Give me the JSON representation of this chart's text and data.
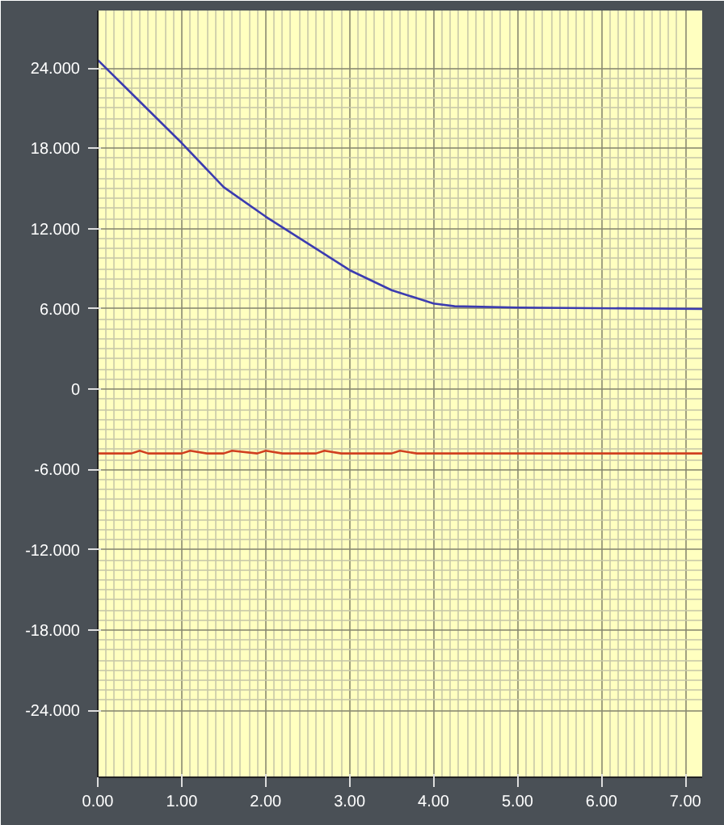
{
  "chart_data": {
    "type": "line",
    "xlim": [
      0,
      7.2
    ],
    "ylim": [
      -29,
      28.3
    ],
    "xticks": [
      {
        "value": 0,
        "label": "0.00"
      },
      {
        "value": 1,
        "label": "1.00"
      },
      {
        "value": 2,
        "label": "2.00"
      },
      {
        "value": 3,
        "label": "3.00"
      },
      {
        "value": 4,
        "label": "4.00"
      },
      {
        "value": 5,
        "label": "5.00"
      },
      {
        "value": 6,
        "label": "6.00"
      },
      {
        "value": 7,
        "label": "7.00"
      }
    ],
    "yticks": [
      {
        "value": -24,
        "label": "-24.000"
      },
      {
        "value": -18,
        "label": "-18.000"
      },
      {
        "value": -12,
        "label": "-12.000"
      },
      {
        "value": -6,
        "label": "-6.000"
      },
      0,
      {
        "value": 6,
        "label": "6.000"
      },
      {
        "value": 12,
        "label": "12.000"
      },
      {
        "value": 18,
        "label": "18.000"
      },
      {
        "value": 24,
        "label": "24.000"
      }
    ],
    "grid": true,
    "line_style": "solid",
    "series": [
      {
        "color": "#3c3cb0",
        "x": [
          0,
          0.5,
          1.0,
          1.5,
          2.0,
          2.5,
          3.0,
          3.5,
          4.0,
          4.25,
          5.0,
          7.2
        ],
        "values": [
          24.6,
          21.5,
          18.4,
          15.1,
          12.9,
          10.9,
          8.9,
          7.4,
          6.4,
          6.2,
          6.1,
          6.0
        ]
      },
      {
        "color": "#d04020",
        "x": [
          0,
          0.4,
          0.5,
          0.6,
          1.0,
          1.1,
          1.3,
          1.5,
          1.6,
          1.9,
          2.0,
          2.2,
          2.6,
          2.7,
          2.9,
          3.5,
          3.6,
          3.8,
          7.2
        ],
        "values": [
          -4.8,
          -4.8,
          -4.6,
          -4.8,
          -4.8,
          -4.6,
          -4.8,
          -4.8,
          -4.6,
          -4.8,
          -4.6,
          -4.8,
          -4.8,
          -4.6,
          -4.8,
          -4.8,
          -4.6,
          -4.8,
          -4.8
        ]
      }
    ]
  }
}
